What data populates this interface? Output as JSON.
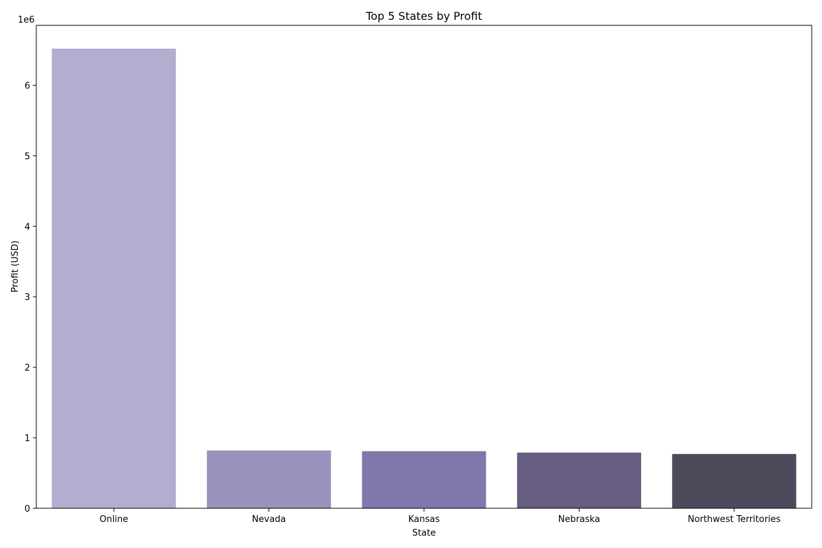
{
  "chart_data": {
    "type": "bar",
    "title": "Top 5 States by Profit",
    "xlabel": "State",
    "ylabel": "Profit (USD)",
    "y_offset_label": "1e6",
    "categories": [
      "Online",
      "Nevada",
      "Kansas",
      "Nebraska",
      "Northwest Territories"
    ],
    "values": [
      6520000,
      820000,
      810000,
      790000,
      770000
    ],
    "colors": [
      "#b1aecf",
      "#9893bc",
      "#7f78aa",
      "#665d80",
      "#4d4a5c"
    ],
    "ylim": [
      0,
      6850000
    ],
    "yticks": [
      0,
      1000000,
      2000000,
      3000000,
      4000000,
      5000000,
      6000000
    ],
    "ytick_labels": [
      "0",
      "1",
      "2",
      "3",
      "4",
      "5",
      "6"
    ],
    "grid": false,
    "legend": "none"
  }
}
